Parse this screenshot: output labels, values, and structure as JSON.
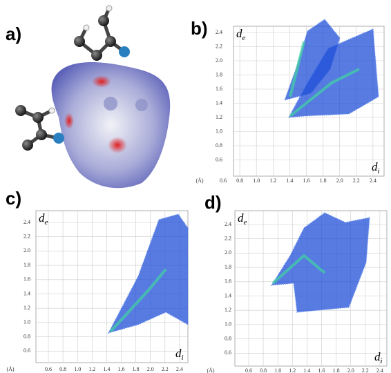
{
  "panels": [
    {
      "label": "a)"
    },
    {
      "label": "b)",
      "y_label": "d",
      "y_label_sub": "e",
      "x_label": "d",
      "x_label_sub": "i",
      "x_unit": "(Å)",
      "xticks": [
        "0.6",
        "0.8",
        "1.0",
        "1.2",
        "1.4",
        "1.6",
        "1.8",
        "2.0",
        "2.2",
        "2.4"
      ],
      "yticks": [
        "2.4",
        "2.2",
        "2.0",
        "1.8",
        "1.6",
        "1.4",
        "1.2",
        "1.0",
        "0.8",
        "0.6"
      ]
    },
    {
      "label": "c)",
      "y_label": "d",
      "y_label_sub": "e",
      "x_label": "d",
      "x_label_sub": "i",
      "x_unit": "(Å)",
      "xticks": [
        "0.6",
        "0.8",
        "1.0",
        "1.2",
        "1.4",
        "1.6",
        "1.8",
        "2.0",
        "2.2",
        "2.4"
      ],
      "yticks": [
        "2.4",
        "2.2",
        "2.0",
        "1.8",
        "1.6",
        "1.4",
        "1.2",
        "1.0",
        "0.8",
        "0.6"
      ]
    },
    {
      "label": "d)",
      "y_label": "d",
      "y_label_sub": "e",
      "x_label": "d",
      "x_label_sub": "i",
      "x_unit": "(Å)",
      "xticks": [
        "0.6",
        "0.8",
        "1.0",
        "1.2",
        "1.4",
        "1.6",
        "1.8",
        "2.0",
        "2.2",
        "2.4"
      ],
      "yticks": [
        "2.4",
        "2.2",
        "2.0",
        "1.8",
        "1.6",
        "1.4",
        "1.2",
        "1.0",
        "0.8",
        "0.6"
      ]
    }
  ]
}
